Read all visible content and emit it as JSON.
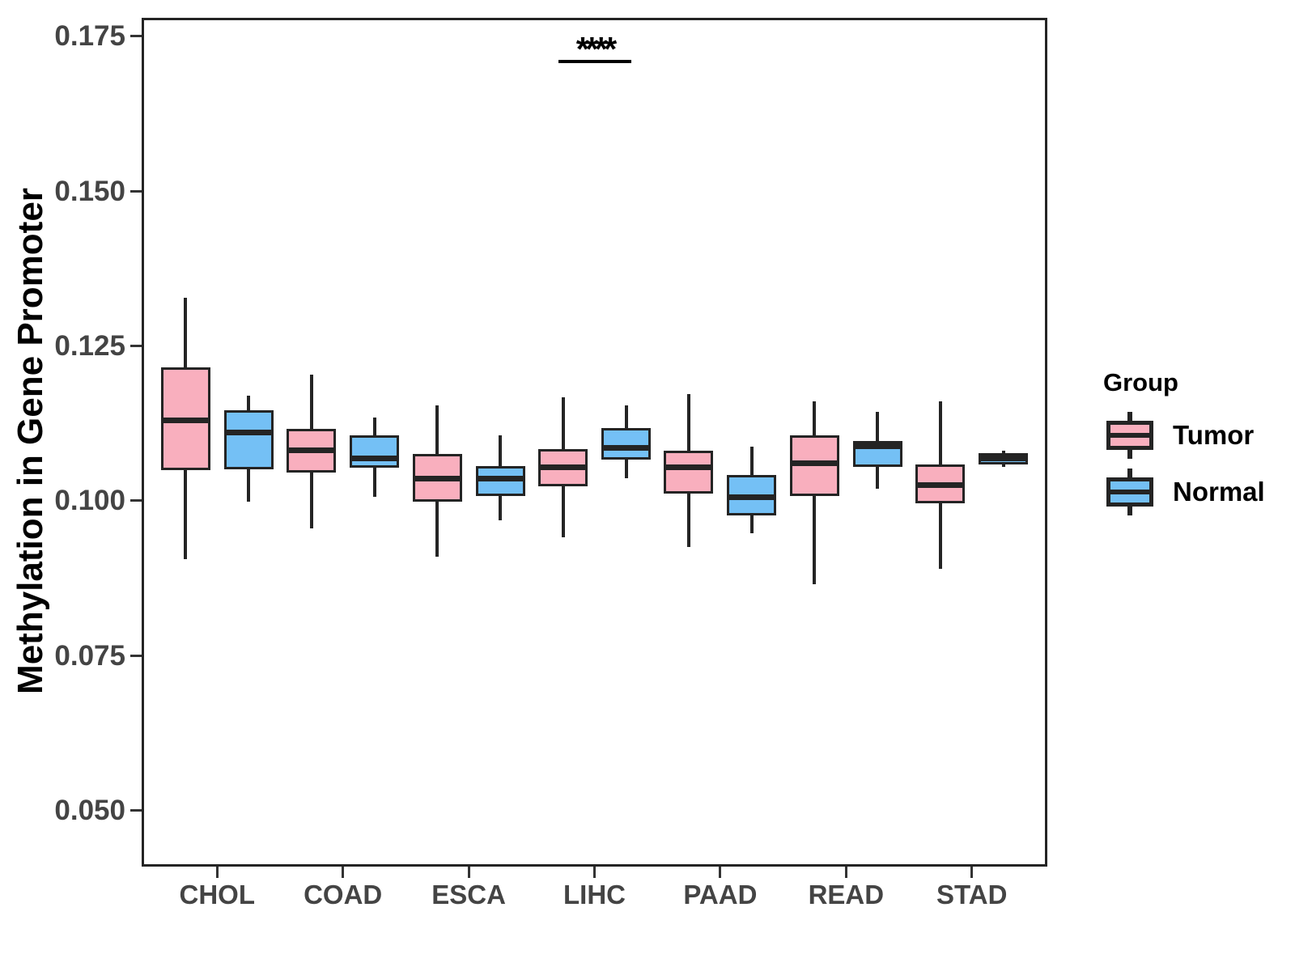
{
  "chart_data": {
    "type": "box",
    "title": "",
    "xlabel": "",
    "ylabel": "Methylation in Gene Promoter",
    "categories": [
      "CHOL",
      "COAD",
      "ESCA",
      "LIHC",
      "PAAD",
      "READ",
      "STAD"
    ],
    "ylim": [
      0.0409,
      0.178
    ],
    "y_ticks": [
      0.05,
      0.075,
      0.1,
      0.125,
      0.15,
      0.175
    ],
    "y_tick_labels": [
      "0.050",
      "0.075",
      "0.100",
      "0.125",
      "0.150",
      "0.175"
    ],
    "grid": false,
    "colors": {
      "border": "#242424",
      "axis_text": "#444444",
      "tumor": "#F9AFBE",
      "normal": "#74C0F5"
    },
    "legend": {
      "title": "Group",
      "position": "right",
      "entries": [
        {
          "label": "Tumor",
          "color": "#F9AFBE"
        },
        {
          "label": "Normal",
          "color": "#74C0F5"
        }
      ]
    },
    "series": [
      {
        "name": "Tumor",
        "color": "#F9AFBE",
        "boxes": [
          {
            "category": "CHOL",
            "min": 0.0905,
            "q1": 0.105,
            "median": 0.113,
            "q3": 0.1215,
            "max": 0.1328
          },
          {
            "category": "COAD",
            "min": 0.0955,
            "q1": 0.1045,
            "median": 0.1082,
            "q3": 0.1116,
            "max": 0.1203
          },
          {
            "category": "ESCA",
            "min": 0.091,
            "q1": 0.0998,
            "median": 0.1036,
            "q3": 0.1076,
            "max": 0.1154
          },
          {
            "category": "LIHC",
            "min": 0.0941,
            "q1": 0.1023,
            "median": 0.1054,
            "q3": 0.1084,
            "max": 0.1167
          },
          {
            "category": "PAAD",
            "min": 0.0925,
            "q1": 0.1011,
            "median": 0.1054,
            "q3": 0.1081,
            "max": 0.1172
          },
          {
            "category": "READ",
            "min": 0.0865,
            "q1": 0.1008,
            "median": 0.106,
            "q3": 0.1105,
            "max": 0.1161
          },
          {
            "category": "STAD",
            "min": 0.089,
            "q1": 0.0996,
            "median": 0.1025,
            "q3": 0.1058,
            "max": 0.1161
          }
        ]
      },
      {
        "name": "Normal",
        "color": "#74C0F5",
        "boxes": [
          {
            "category": "CHOL",
            "min": 0.0998,
            "q1": 0.1051,
            "median": 0.111,
            "q3": 0.1146,
            "max": 0.117
          },
          {
            "category": "COAD",
            "min": 0.1006,
            "q1": 0.1053,
            "median": 0.1069,
            "q3": 0.1105,
            "max": 0.1135
          },
          {
            "category": "ESCA",
            "min": 0.0969,
            "q1": 0.1008,
            "median": 0.1036,
            "q3": 0.1056,
            "max": 0.1105
          },
          {
            "category": "LIHC",
            "min": 0.1036,
            "q1": 0.1066,
            "median": 0.1086,
            "q3": 0.1118,
            "max": 0.1154
          },
          {
            "category": "PAAD",
            "min": 0.0948,
            "q1": 0.0976,
            "median": 0.1006,
            "q3": 0.1042,
            "max": 0.1087
          },
          {
            "category": "READ",
            "min": 0.102,
            "q1": 0.1055,
            "median": 0.1088,
            "q3": 0.1096,
            "max": 0.1144
          },
          {
            "category": "STAD",
            "min": 0.1054,
            "q1": 0.1059,
            "median": 0.1068,
            "q3": 0.1077,
            "max": 0.1081
          }
        ]
      }
    ],
    "annotation": {
      "text": "****",
      "category": "LIHC",
      "line_y": 0.1712
    }
  }
}
